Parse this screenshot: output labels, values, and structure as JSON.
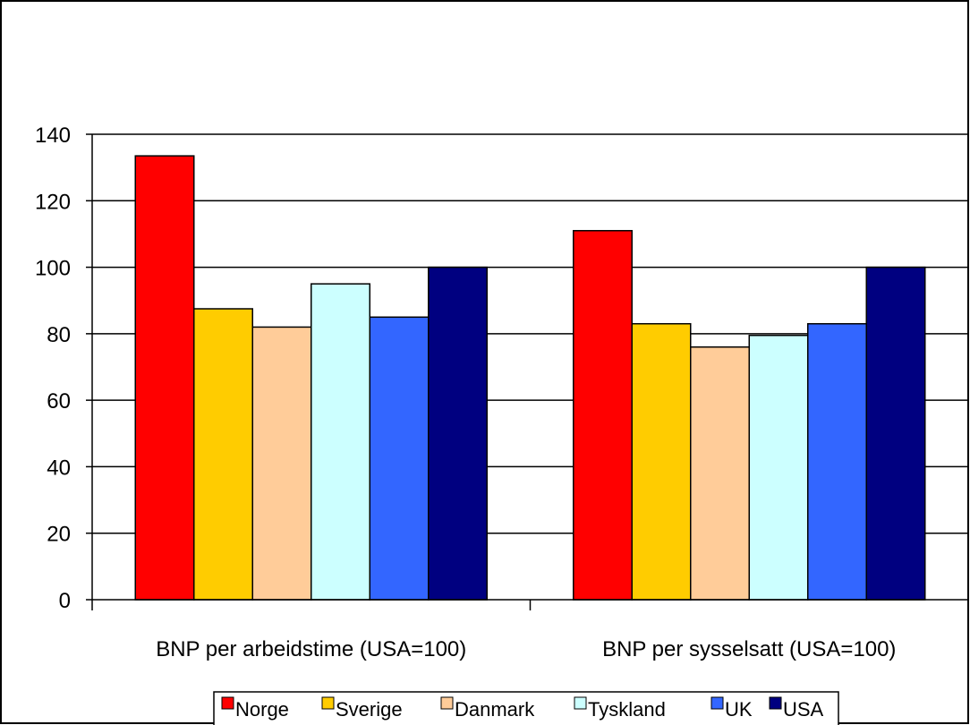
{
  "chart_data": {
    "type": "bar",
    "title": "",
    "xlabel": "",
    "ylabel": "",
    "categories": [
      "BNP per arbeidstime (USA=100)",
      "BNP per sysselsatt (USA=100)"
    ],
    "ylim": [
      0,
      140
    ],
    "yticks": [
      0,
      20,
      40,
      60,
      80,
      100,
      120,
      140
    ],
    "grid": true,
    "legend_position": "bottom",
    "series": [
      {
        "name": "Norge",
        "color": "#ff0000",
        "values": [
          133.5,
          111
        ]
      },
      {
        "name": "Sverige",
        "color": "#ffcc00",
        "values": [
          87.5,
          83
        ]
      },
      {
        "name": "Danmark",
        "color": "#ffcc99",
        "values": [
          82,
          76
        ]
      },
      {
        "name": "Tyskland",
        "color": "#ccffff",
        "values": [
          95,
          79.5
        ]
      },
      {
        "name": "UK",
        "color": "#3366ff",
        "values": [
          85,
          83
        ]
      },
      {
        "name": "USA",
        "color": "#000080",
        "values": [
          100,
          100
        ]
      }
    ]
  }
}
